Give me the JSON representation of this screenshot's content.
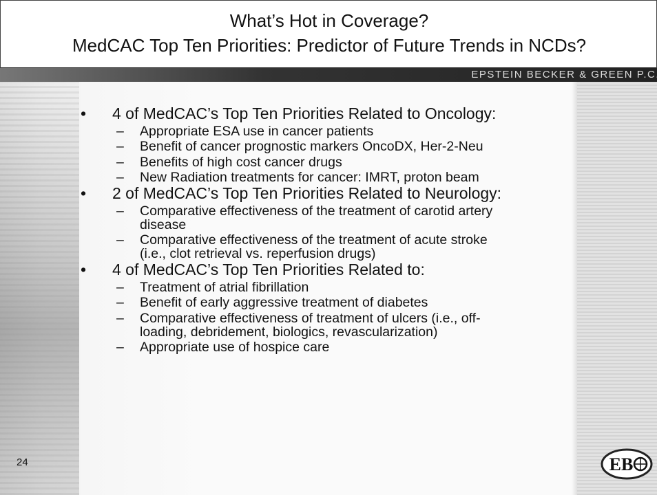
{
  "header": {
    "title_lines": [
      "What’s Hot in Coverage?",
      "MedCAC Top Ten Priorities: Predictor of Future Trends in NCDs?"
    ],
    "firm": "EPSTEIN BECKER & GREEN P.C."
  },
  "sections": [
    {
      "heading": "4 of MedCAC’s Top Ten Priorities Related to Oncology:",
      "items": [
        "Appropriate ESA use in cancer patients",
        "Benefit of cancer prognostic markers OncoDX, Her-2-Neu",
        "Benefits of high cost cancer drugs",
        "New Radiation treatments for cancer: IMRT, proton beam"
      ]
    },
    {
      "heading": "2 of MedCAC’s Top Ten Priorities Related to Neurology:",
      "items": [
        "Comparative effectiveness of the treatment of carotid artery disease",
        "Comparative effectiveness of the treatment of acute stroke (i.e., clot retrieval vs. reperfusion drugs)"
      ]
    },
    {
      "heading": "4 of MedCAC’s Top Ten Priorities Related to:",
      "items": [
        "Treatment of atrial fibrillation",
        "Benefit of early aggressive treatment of diabetes",
        "Comparative effectiveness of treatment of ulcers (i.e., off-loading, debridement, biologics, revascularization)",
        "Appropriate use of hospice care"
      ]
    }
  ],
  "footer": {
    "page_number": "24",
    "logo": "EB"
  }
}
